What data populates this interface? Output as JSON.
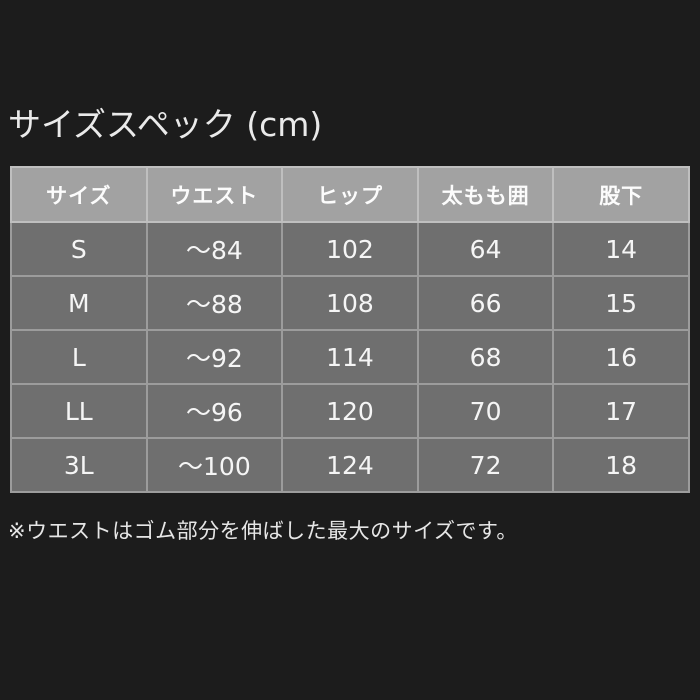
{
  "title": "サイズスペック (cm)",
  "chart_data": {
    "type": "table",
    "title": "サイズスペック (cm)",
    "unit": "cm",
    "columns": [
      "サイズ",
      "ウエスト",
      "ヒップ",
      "太もも囲",
      "股下"
    ],
    "rows": [
      [
        "S",
        "～84",
        "102",
        "64",
        "14"
      ],
      [
        "M",
        "～88",
        "108",
        "66",
        "15"
      ],
      [
        "L",
        "～92",
        "114",
        "68",
        "16"
      ],
      [
        "LL",
        "～96",
        "120",
        "70",
        "17"
      ],
      [
        "3L",
        "～100",
        "124",
        "72",
        "18"
      ]
    ],
    "footnote": "※ウエストはゴム部分を伸ばした最大のサイズです。"
  },
  "colors": {
    "page_bg": "#1c1c1c",
    "header_bg": "#a2a2a2",
    "row_bg": "#6f6f6f",
    "header_grid": "#bfbfbf",
    "row_grid": "#9c9c9c",
    "title_text": "#eaeaea",
    "cell_text": "#f5f5f5"
  }
}
